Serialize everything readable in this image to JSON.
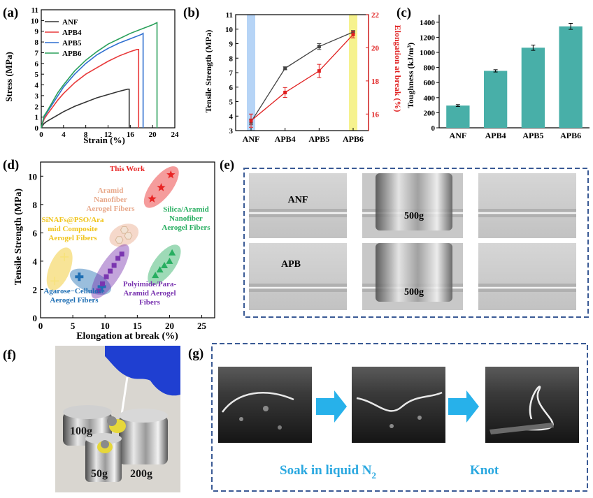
{
  "panel_labels": {
    "a": "(a)",
    "b": "(b)",
    "c": "(c)",
    "d": "(d)",
    "e": "(e)",
    "f": "(f)",
    "g": "(g)"
  },
  "colors": {
    "ANF": "#333333",
    "APB4": "#e8393a",
    "APB5": "#2f6fd0",
    "APB6": "#2aa05a",
    "bar": "#48afa8",
    "red_axis": "#e02020",
    "highlight_blue": "#a9cdf5",
    "highlight_yellow": "#f5f07a",
    "frame_dash": "#3a5a95",
    "arrow": "#27b1ea",
    "caption_blue": "#2aa8e0",
    "this_work": "#e82424",
    "aramid_nano": "#e8a88a",
    "sinafs": "#f0c419",
    "silica": "#27ae60",
    "agarose": "#1f6fb4",
    "polyimide": "#7a35b0"
  },
  "chart_data": [
    {
      "id": "a",
      "type": "line",
      "xlabel": "Strain (%)",
      "ylabel": "Stress (MPa)",
      "xlim": [
        0,
        24
      ],
      "ylim": [
        0,
        11
      ],
      "xticks": [
        0,
        4,
        8,
        12,
        16,
        20,
        24
      ],
      "yticks": [
        0,
        1,
        2,
        3,
        4,
        5,
        6,
        7,
        8,
        9,
        10,
        11
      ],
      "legend": "top-left",
      "series": [
        {
          "name": "ANF",
          "x": [
            0,
            0.5,
            1,
            2,
            3,
            4,
            6,
            8,
            10,
            12,
            14,
            15.5,
            15.8,
            15.8
          ],
          "y": [
            0,
            0.4,
            0.6,
            0.9,
            1.2,
            1.5,
            2.0,
            2.4,
            2.8,
            3.1,
            3.4,
            3.6,
            3.6,
            0
          ]
        },
        {
          "name": "APB4",
          "x": [
            0,
            0.5,
            1,
            2,
            3,
            4,
            6,
            8,
            10,
            12,
            14,
            16,
            17.2,
            17.5,
            17.5
          ],
          "y": [
            0,
            0.8,
            1.2,
            1.9,
            2.6,
            3.2,
            4.2,
            5.0,
            5.6,
            6.2,
            6.7,
            7.1,
            7.3,
            7.3,
            0
          ]
        },
        {
          "name": "APB5",
          "x": [
            0,
            0.5,
            1,
            2,
            3,
            4,
            6,
            8,
            10,
            12,
            14,
            16,
            18,
            18.3,
            18.3
          ],
          "y": [
            0,
            1.0,
            1.4,
            2.2,
            3.0,
            3.8,
            5.0,
            6.0,
            6.8,
            7.4,
            7.9,
            8.3,
            8.7,
            8.8,
            0
          ]
        },
        {
          "name": "APB6",
          "x": [
            0,
            0.5,
            1,
            2,
            3,
            4,
            6,
            8,
            10,
            12,
            14,
            16,
            18,
            20,
            20.8,
            20.8
          ],
          "y": [
            0,
            1.1,
            1.5,
            2.4,
            3.3,
            4.0,
            5.3,
            6.3,
            7.1,
            7.8,
            8.3,
            8.8,
            9.2,
            9.6,
            9.8,
            0
          ]
        }
      ]
    },
    {
      "id": "b",
      "type": "line",
      "categories": [
        "ANF",
        "APB4",
        "APB5",
        "APB6"
      ],
      "ylabel": "Tensile Strength (MPa)",
      "y2label": "Elongation at break (%)",
      "ylim": [
        3,
        11
      ],
      "y2lim": [
        15,
        22
      ],
      "yticks": [
        3,
        4,
        5,
        6,
        7,
        8,
        9,
        10,
        11
      ],
      "y2ticks": [
        16,
        18,
        20,
        22
      ],
      "highlighted_categories": [
        "ANF",
        "APB6"
      ],
      "series": [
        {
          "name": "Tensile Strength",
          "axis": "left",
          "values": [
            3.6,
            7.3,
            8.8,
            9.8
          ],
          "errors": [
            0.2,
            0.1,
            0.2,
            0.1
          ]
        },
        {
          "name": "Elongation at break",
          "axis": "right",
          "values": [
            15.6,
            17.3,
            18.6,
            20.8
          ],
          "errors": [
            0.4,
            0.3,
            0.4,
            0.2
          ]
        }
      ]
    },
    {
      "id": "c",
      "type": "bar",
      "categories": [
        "ANF",
        "APB4",
        "APB5",
        "APB6"
      ],
      "values": [
        295,
        755,
        1062,
        1345
      ],
      "errors": [
        12,
        15,
        35,
        40
      ],
      "ylabel": "Toughness (kJ/m³)",
      "ylim": [
        0,
        1500
      ],
      "yticks": [
        0,
        200,
        400,
        600,
        800,
        1000,
        1200,
        1400
      ]
    },
    {
      "id": "d",
      "type": "scatter",
      "xlabel": "Elongation at break (%)",
      "ylabel": "Tensile Strength (MPa)",
      "xlim": [
        0,
        27
      ],
      "ylim": [
        0,
        11
      ],
      "xticks": [
        0,
        5,
        10,
        15,
        20,
        25
      ],
      "yticks": [
        0,
        2,
        4,
        6,
        8,
        10
      ],
      "series": [
        {
          "name": "This Work",
          "marker": "star",
          "x": [
            17.3,
            18.7,
            20.2
          ],
          "y": [
            8.4,
            9.2,
            10.1
          ]
        },
        {
          "name": "Aramid Nanofiber Aerogel Fibers",
          "marker": "hexagon",
          "x": [
            12.2,
            13.0,
            13.6
          ],
          "y": [
            5.5,
            6.2,
            5.8
          ]
        },
        {
          "name": "SiNAFs@PSO/Aramid Composite Aerogel Fibers",
          "marker": "plus",
          "x": [
            2.2,
            3.7
          ],
          "y": [
            2.6,
            4.3
          ]
        },
        {
          "name": "Silica/Aramid Nanofiber Aerogel Fibers",
          "marker": "triangle",
          "x": [
            17.8,
            18.5,
            19.2,
            20.0,
            20.4
          ],
          "y": [
            3.0,
            3.4,
            3.7,
            4.0,
            4.6
          ]
        },
        {
          "name": "Agarose−Cellulose Aerogel Fibers",
          "marker": "cross",
          "x": [
            6.0,
            9.5
          ],
          "y": [
            2.9,
            2.2
          ]
        },
        {
          "name": "Polyimide/Para-Aramid Aerogel Fibers",
          "marker": "square",
          "x": [
            9.0,
            9.6,
            10.2,
            10.8,
            11.4,
            12.0,
            12.6
          ],
          "y": [
            1.9,
            2.4,
            2.9,
            3.3,
            3.7,
            4.2,
            4.5
          ]
        }
      ]
    }
  ],
  "panel_d_labels": {
    "this_work": "This Work",
    "aramid_nano": [
      "Aramid",
      "Nanofiber",
      "Aerogel Fibers"
    ],
    "sinafs": [
      "SiNAFs@PSO/Ara",
      "mid Composite",
      "Aerogel Fibers"
    ],
    "silica": [
      "Silica/Aramid",
      "Nanofiber",
      "Aerogel Fibers"
    ],
    "agarose": [
      "Agarose−Cellulose",
      "Aerogel Fibers"
    ],
    "polyimide": [
      "Polyimide/Para-",
      "Aramid  Aerogel",
      "Fibers"
    ]
  },
  "panel_e": {
    "row1_label": "ANF",
    "row2_label": "APB",
    "weight_label": "500g"
  },
  "panel_f": {
    "weights": [
      "100g",
      "50g",
      "200g"
    ]
  },
  "panel_g": {
    "caption_soak": "Soak in liquid N",
    "caption_soak_sub": "2",
    "caption_knot": "Knot"
  }
}
